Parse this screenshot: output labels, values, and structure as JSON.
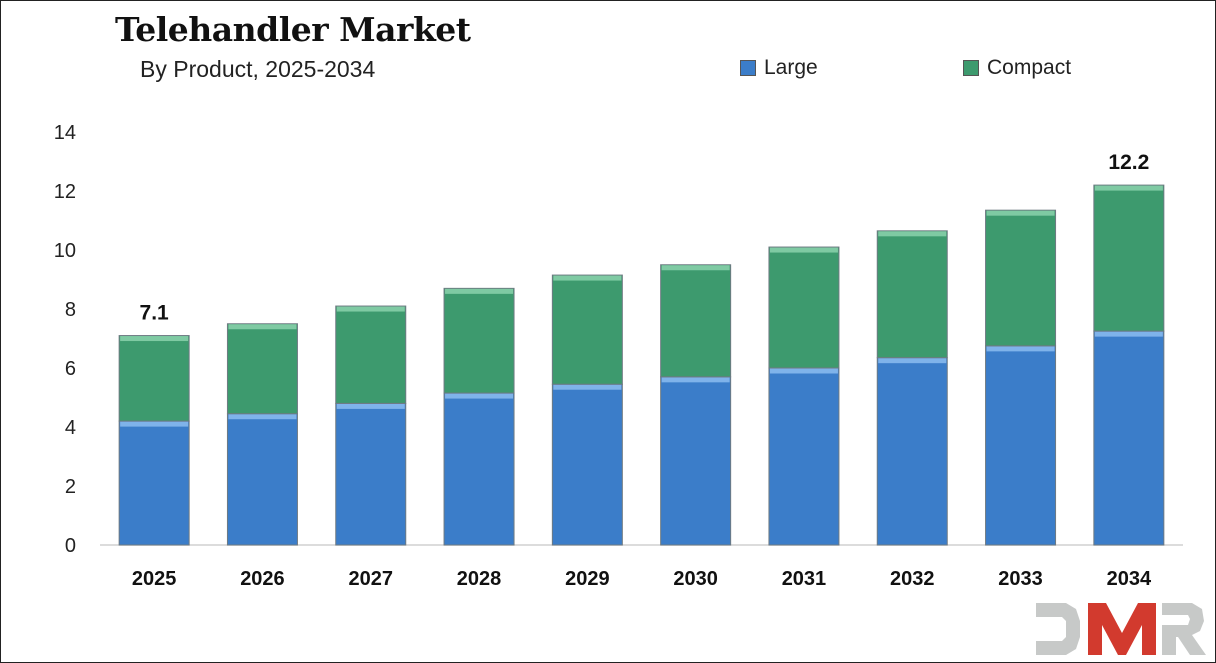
{
  "title": "Telehandler Market",
  "subtitle": "By Product, 2025-2034",
  "colors": {
    "large": "#3b7dc9",
    "compact": "#3d9a6e"
  },
  "logo_text": "DMR",
  "chart_data": {
    "type": "bar",
    "stacked": true,
    "categories": [
      "2025",
      "2026",
      "2027",
      "2028",
      "2029",
      "2030",
      "2031",
      "2032",
      "2033",
      "2034"
    ],
    "series": [
      {
        "name": "Large",
        "values": [
          4.2,
          4.45,
          4.8,
          5.15,
          5.45,
          5.7,
          6.0,
          6.35,
          6.75,
          7.25
        ]
      },
      {
        "name": "Compact",
        "values": [
          2.9,
          3.05,
          3.3,
          3.55,
          3.7,
          3.8,
          4.1,
          4.3,
          4.6,
          4.95
        ]
      }
    ],
    "data_labels": [
      {
        "category": "2025",
        "text": "7.1"
      },
      {
        "category": "2034",
        "text": "12.2"
      }
    ],
    "yticks": [
      "0",
      "2",
      "4",
      "6",
      "8",
      "10",
      "12",
      "14"
    ],
    "ylim": [
      0,
      14
    ],
    "grid": false,
    "legend_position": "top-right"
  }
}
